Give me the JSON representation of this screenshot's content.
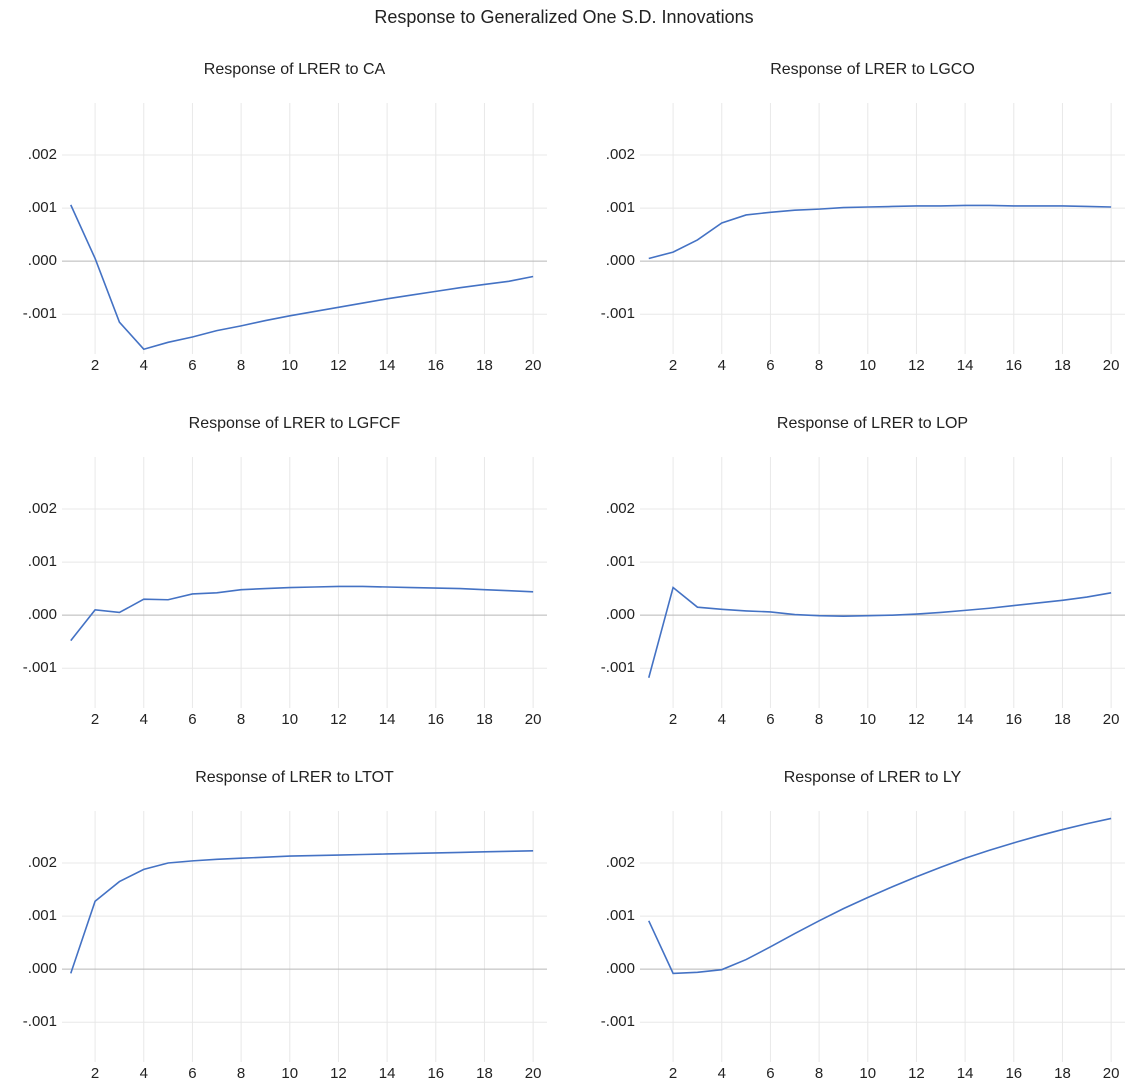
{
  "title": "Response to Generalized One S.D. Innovations",
  "chart_data": [
    {
      "type": "line",
      "title": "Response of LRER to CA",
      "color": "#4472c4",
      "grid": true,
      "x": [
        1,
        2,
        3,
        4,
        5,
        6,
        7,
        8,
        9,
        10,
        11,
        12,
        13,
        14,
        15,
        16,
        17,
        18,
        19,
        20
      ],
      "values": [
        0.00106,
        5e-05,
        -0.00115,
        -0.00166,
        -0.00153,
        -0.00143,
        -0.00131,
        -0.00122,
        -0.00112,
        -0.00103,
        -0.00095,
        -0.00087,
        -0.00079,
        -0.00071,
        -0.00064,
        -0.00057,
        -0.0005,
        -0.00044,
        -0.00038,
        -0.00029
      ],
      "xlim": [
        0.64,
        20.57
      ],
      "xticks": [
        2,
        4,
        6,
        8,
        10,
        12,
        14,
        16,
        18,
        20
      ],
      "ylim": [
        -0.00175,
        0.00298
      ],
      "yticks": [
        {
          "value": 0.002,
          "label": ".002"
        },
        {
          "value": 0.001,
          "label": ".001"
        },
        {
          "value": 0,
          "label": ".000"
        },
        {
          "value": -0.001,
          "label": "-.001"
        }
      ]
    },
    {
      "type": "line",
      "title": "Response of LRER to LGCO",
      "color": "#4472c4",
      "grid": true,
      "x": [
        1,
        2,
        3,
        4,
        5,
        6,
        7,
        8,
        9,
        10,
        11,
        12,
        13,
        14,
        15,
        16,
        17,
        18,
        19,
        20
      ],
      "values": [
        5e-05,
        0.00017,
        0.0004,
        0.00072,
        0.00087,
        0.00092,
        0.00096,
        0.00098,
        0.00101,
        0.00102,
        0.00103,
        0.00104,
        0.00104,
        0.00105,
        0.00105,
        0.00104,
        0.00104,
        0.00104,
        0.00103,
        0.00102
      ],
      "xlim": [
        0.64,
        20.57
      ],
      "xticks": [
        2,
        4,
        6,
        8,
        10,
        12,
        14,
        16,
        18,
        20
      ],
      "ylim": [
        -0.00175,
        0.00298
      ],
      "yticks": [
        {
          "value": 0.002,
          "label": ".002"
        },
        {
          "value": 0.001,
          "label": ".001"
        },
        {
          "value": 0,
          "label": ".000"
        },
        {
          "value": -0.001,
          "label": "-.001"
        }
      ]
    },
    {
      "type": "line",
      "title": "Response of LRER to LGFCF",
      "color": "#4472c4",
      "grid": true,
      "x": [
        1,
        2,
        3,
        4,
        5,
        6,
        7,
        8,
        9,
        10,
        11,
        12,
        13,
        14,
        15,
        16,
        17,
        18,
        19,
        20
      ],
      "values": [
        -0.00048,
        0.0001,
        5e-05,
        0.0003,
        0.00029,
        0.0004,
        0.00042,
        0.00048,
        0.0005,
        0.00052,
        0.00053,
        0.00054,
        0.00054,
        0.00053,
        0.00052,
        0.00051,
        0.0005,
        0.00048,
        0.00046,
        0.00044
      ],
      "xlim": [
        0.64,
        20.57
      ],
      "xticks": [
        2,
        4,
        6,
        8,
        10,
        12,
        14,
        16,
        18,
        20
      ],
      "ylim": [
        -0.00175,
        0.00298
      ],
      "yticks": [
        {
          "value": 0.002,
          "label": ".002"
        },
        {
          "value": 0.001,
          "label": ".001"
        },
        {
          "value": 0,
          "label": ".000"
        },
        {
          "value": -0.001,
          "label": "-.001"
        }
      ]
    },
    {
      "type": "line",
      "title": "Response of LRER to LOP",
      "color": "#4472c4",
      "grid": true,
      "x": [
        1,
        2,
        3,
        4,
        5,
        6,
        7,
        8,
        9,
        10,
        11,
        12,
        13,
        14,
        15,
        16,
        17,
        18,
        19,
        20
      ],
      "values": [
        -0.00118,
        0.00052,
        0.00015,
        0.00011,
        8e-05,
        6e-05,
        1e-05,
        -1e-05,
        -2e-05,
        -1e-05,
        0.0,
        2e-05,
        5e-05,
        9e-05,
        0.00013,
        0.00018,
        0.00023,
        0.00028,
        0.00034,
        0.00042
      ],
      "xlim": [
        0.64,
        20.57
      ],
      "xticks": [
        2,
        4,
        6,
        8,
        10,
        12,
        14,
        16,
        18,
        20
      ],
      "ylim": [
        -0.00175,
        0.00298
      ],
      "yticks": [
        {
          "value": 0.002,
          "label": ".002"
        },
        {
          "value": 0.001,
          "label": ".001"
        },
        {
          "value": 0,
          "label": ".000"
        },
        {
          "value": -0.001,
          "label": "-.001"
        }
      ]
    },
    {
      "type": "line",
      "title": "Response of LRER to LTOT",
      "color": "#4472c4",
      "grid": true,
      "x": [
        1,
        2,
        3,
        4,
        5,
        6,
        7,
        8,
        9,
        10,
        11,
        12,
        13,
        14,
        15,
        16,
        17,
        18,
        19,
        20
      ],
      "values": [
        -8e-05,
        0.00128,
        0.00165,
        0.00188,
        0.002,
        0.00204,
        0.00207,
        0.00209,
        0.00211,
        0.00213,
        0.00214,
        0.00215,
        0.00216,
        0.00217,
        0.00218,
        0.00219,
        0.0022,
        0.00221,
        0.00222,
        0.00223
      ],
      "xlim": [
        0.64,
        20.57
      ],
      "xticks": [
        2,
        4,
        6,
        8,
        10,
        12,
        14,
        16,
        18,
        20
      ],
      "ylim": [
        -0.00175,
        0.00298
      ],
      "yticks": [
        {
          "value": 0.002,
          "label": ".002"
        },
        {
          "value": 0.001,
          "label": ".001"
        },
        {
          "value": 0,
          "label": ".000"
        },
        {
          "value": -0.001,
          "label": "-.001"
        }
      ]
    },
    {
      "type": "line",
      "title": "Response of LRER to LY",
      "color": "#4472c4",
      "grid": true,
      "x": [
        1,
        2,
        3,
        4,
        5,
        6,
        7,
        8,
        9,
        10,
        11,
        12,
        13,
        14,
        15,
        16,
        17,
        18,
        19,
        20
      ],
      "values": [
        0.00091,
        -8e-05,
        -6e-05,
        -1e-05,
        0.00018,
        0.00042,
        0.00067,
        0.00091,
        0.00114,
        0.00135,
        0.00155,
        0.00174,
        0.00192,
        0.00209,
        0.00224,
        0.00238,
        0.00251,
        0.00263,
        0.00274,
        0.00284
      ],
      "xlim": [
        0.64,
        20.57
      ],
      "xticks": [
        2,
        4,
        6,
        8,
        10,
        12,
        14,
        16,
        18,
        20
      ],
      "ylim": [
        -0.00175,
        0.00298
      ],
      "yticks": [
        {
          "value": 0.002,
          "label": ".002"
        },
        {
          "value": 0.001,
          "label": ".001"
        },
        {
          "value": 0,
          "label": ".000"
        },
        {
          "value": -0.001,
          "label": "-.001"
        }
      ]
    }
  ]
}
